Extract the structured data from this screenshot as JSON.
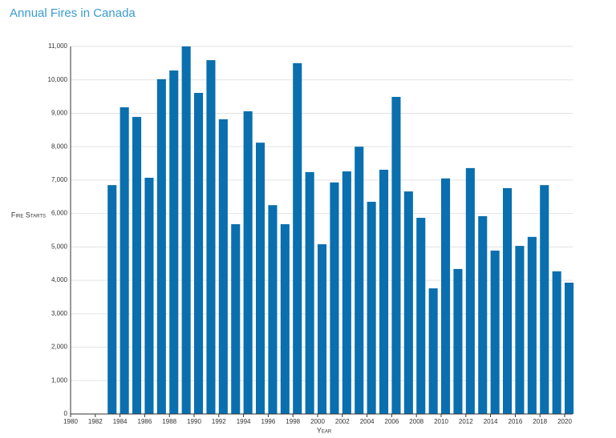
{
  "chart_data": {
    "type": "bar",
    "title": "Annual Fires in Canada",
    "x_label": "Year",
    "y_label": "Fire Starts",
    "x": [
      1983,
      1984,
      1985,
      1986,
      1987,
      1988,
      1989,
      1990,
      1991,
      1992,
      1993,
      1994,
      1995,
      1996,
      1997,
      1998,
      1999,
      2000,
      2001,
      2002,
      2003,
      2004,
      2005,
      2006,
      2007,
      2008,
      2009,
      2010,
      2011,
      2012,
      2013,
      2014,
      2015,
      2016,
      2017,
      2018,
      2019,
      2020
    ],
    "values": [
      6850,
      9180,
      8890,
      7070,
      10020,
      10280,
      11000,
      9610,
      10590,
      8820,
      5680,
      9060,
      8120,
      6250,
      5680,
      10500,
      7240,
      5080,
      6930,
      7260,
      8000,
      6350,
      7310,
      9490,
      6660,
      5870,
      3760,
      7050,
      4340,
      7360,
      5920,
      4890,
      6760,
      5030,
      5300,
      6850,
      4270,
      3930
    ],
    "color": "#0a6fae",
    "xlim": [
      1980,
      2020
    ],
    "xticks": [
      1980,
      1982,
      1984,
      1986,
      1988,
      1990,
      1992,
      1994,
      1996,
      1998,
      2000,
      2002,
      2004,
      2006,
      2008,
      2010,
      2012,
      2014,
      2016,
      2018,
      2020
    ],
    "ylim": [
      0,
      11000
    ],
    "yticks": [
      0,
      {
        "value": 1000,
        "label": "1,000"
      },
      {
        "value": 2000,
        "label": "2,000"
      },
      {
        "value": 3000,
        "label": "3,000"
      },
      {
        "value": 4000,
        "label": "4,000"
      },
      {
        "value": 5000,
        "label": "5,000"
      },
      {
        "value": 6000,
        "label": "6,000"
      },
      {
        "value": 7000,
        "label": "7,000"
      },
      {
        "value": 8000,
        "label": "8,000"
      },
      {
        "value": 9000,
        "label": "9,000"
      },
      {
        "value": 10000,
        "label": "10,000"
      },
      {
        "value": 11000,
        "label": "11,000"
      }
    ],
    "grid": true
  }
}
